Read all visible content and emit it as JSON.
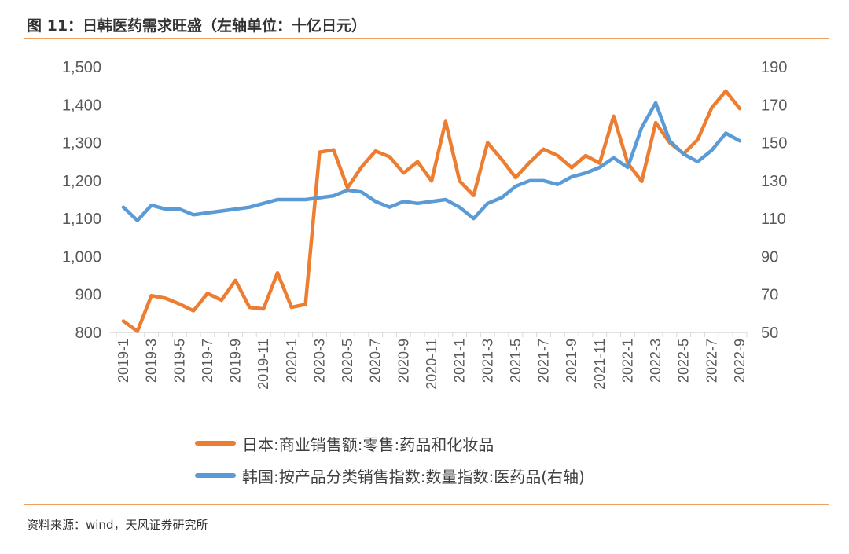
{
  "title": "图 11：日韩医药需求旺盛（左轴单位：十亿日元）",
  "source": "资料来源：wind，天风证券研究所",
  "chart_data": {
    "type": "line",
    "categories": [
      "2019-1",
      "2019-2",
      "2019-3",
      "2019-4",
      "2019-5",
      "2019-6",
      "2019-7",
      "2019-8",
      "2019-9",
      "2019-10",
      "2019-11",
      "2019-12",
      "2020-1",
      "2020-2",
      "2020-3",
      "2020-4",
      "2020-5",
      "2020-6",
      "2020-7",
      "2020-8",
      "2020-9",
      "2020-10",
      "2020-11",
      "2020-12",
      "2021-1",
      "2021-2",
      "2021-3",
      "2021-4",
      "2021-5",
      "2021-6",
      "2021-7",
      "2021-8",
      "2021-9",
      "2021-10",
      "2021-11",
      "2021-12",
      "2022-1",
      "2022-2",
      "2022-3",
      "2022-4",
      "2022-5",
      "2022-6",
      "2022-7",
      "2022-8",
      "2022-9"
    ],
    "x_tick_labels": [
      "2019-1",
      "2019-3",
      "2019-5",
      "2019-7",
      "2019-9",
      "2019-11",
      "2020-1",
      "2020-3",
      "2020-5",
      "2020-7",
      "2020-9",
      "2020-11",
      "2021-1",
      "2021-3",
      "2021-5",
      "2021-7",
      "2021-9",
      "2021-11",
      "2022-1",
      "2022-3",
      "2022-5",
      "2022-7",
      "2022-9"
    ],
    "y_left": {
      "min": 800,
      "max": 1500,
      "ticks": [
        "800",
        "900",
        "1,000",
        "1,100",
        "1,200",
        "1,300",
        "1,400",
        "1,500"
      ],
      "tick_values": [
        800,
        900,
        1000,
        1100,
        1200,
        1300,
        1400,
        1500
      ]
    },
    "y_right": {
      "min": 50,
      "max": 190,
      "ticks": [
        "50",
        "70",
        "90",
        "110",
        "130",
        "150",
        "170",
        "190"
      ],
      "tick_values": [
        50,
        70,
        90,
        110,
        130,
        150,
        170,
        190
      ]
    },
    "series": [
      {
        "name": "日本:商业销售额:零售:药品和化妆品",
        "axis": "left",
        "color": "#ed7d31",
        "values": [
          830,
          803,
          897,
          890,
          875,
          857,
          903,
          885,
          937,
          866,
          862,
          957,
          866,
          874,
          1275,
          1281,
          1181,
          1236,
          1278,
          1263,
          1220,
          1250,
          1199,
          1356,
          1199,
          1161,
          1300,
          1256,
          1208,
          1248,
          1283,
          1266,
          1234,
          1266,
          1246,
          1370,
          1246,
          1198,
          1353,
          1300,
          1271,
          1308,
          1392,
          1436,
          1390
        ]
      },
      {
        "name": "韩国:按产品分类销售指数:数量指数:医药品(右轴)",
        "axis": "right",
        "color": "#5b9bd5",
        "values": [
          116,
          109,
          117,
          115,
          115,
          112,
          113,
          114,
          115,
          116,
          118,
          120,
          120,
          120,
          121,
          122,
          125,
          124,
          119,
          116,
          119,
          118,
          119,
          120,
          116,
          110,
          118,
          121,
          127,
          130,
          130,
          128,
          132,
          134,
          137,
          142,
          137,
          158,
          171,
          151,
          144,
          140,
          146,
          155,
          151
        ]
      }
    ]
  },
  "legend": {
    "japan": "日本:商业销售额:零售:药品和化妆品",
    "korea": "韩国:按产品分类销售指数:数量指数:医药品(右轴)"
  }
}
